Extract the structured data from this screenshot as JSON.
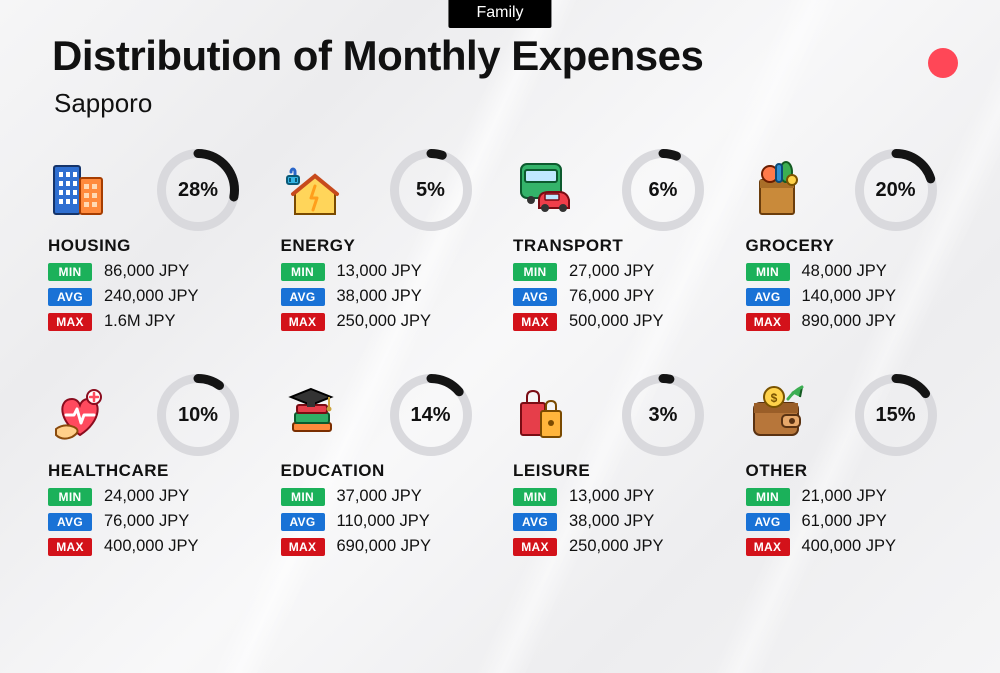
{
  "tab_label": "Family",
  "title": "Distribution of Monthly Expenses",
  "subtitle": "Sapporo",
  "accent_dot_color": "#ff4757",
  "donut": {
    "track_color": "#d9d9dd",
    "fill_color": "#141414",
    "thickness": 9,
    "diameter": 84,
    "pct_fontsize": 20
  },
  "badges": {
    "min": {
      "label": "MIN",
      "bg": "#1bb15a"
    },
    "avg": {
      "label": "AVG",
      "bg": "#1972d6"
    },
    "max": {
      "label": "MAX",
      "bg": "#d3121a"
    }
  },
  "currency_suffix": " JPY",
  "categories": [
    {
      "key": "housing",
      "label": "HOUSING",
      "icon": "buildings",
      "percent": 28,
      "min": "86,000",
      "avg": "240,000",
      "max": "1.6M"
    },
    {
      "key": "energy",
      "label": "ENERGY",
      "icon": "energy-house",
      "percent": 5,
      "min": "13,000",
      "avg": "38,000",
      "max": "250,000"
    },
    {
      "key": "transport",
      "label": "TRANSPORT",
      "icon": "bus-car",
      "percent": 6,
      "min": "27,000",
      "avg": "76,000",
      "max": "500,000"
    },
    {
      "key": "grocery",
      "label": "GROCERY",
      "icon": "grocery-bag",
      "percent": 20,
      "min": "48,000",
      "avg": "140,000",
      "max": "890,000"
    },
    {
      "key": "healthcare",
      "label": "HEALTHCARE",
      "icon": "healthcare-heart",
      "percent": 10,
      "min": "24,000",
      "avg": "76,000",
      "max": "400,000"
    },
    {
      "key": "education",
      "label": "EDUCATION",
      "icon": "graduation-books",
      "percent": 14,
      "min": "37,000",
      "avg": "110,000",
      "max": "690,000"
    },
    {
      "key": "leisure",
      "label": "LEISURE",
      "icon": "shopping-bags",
      "percent": 3,
      "min": "13,000",
      "avg": "38,000",
      "max": "250,000"
    },
    {
      "key": "other",
      "label": "OTHER",
      "icon": "wallet",
      "percent": 15,
      "min": "21,000",
      "avg": "61,000",
      "max": "400,000"
    }
  ]
}
